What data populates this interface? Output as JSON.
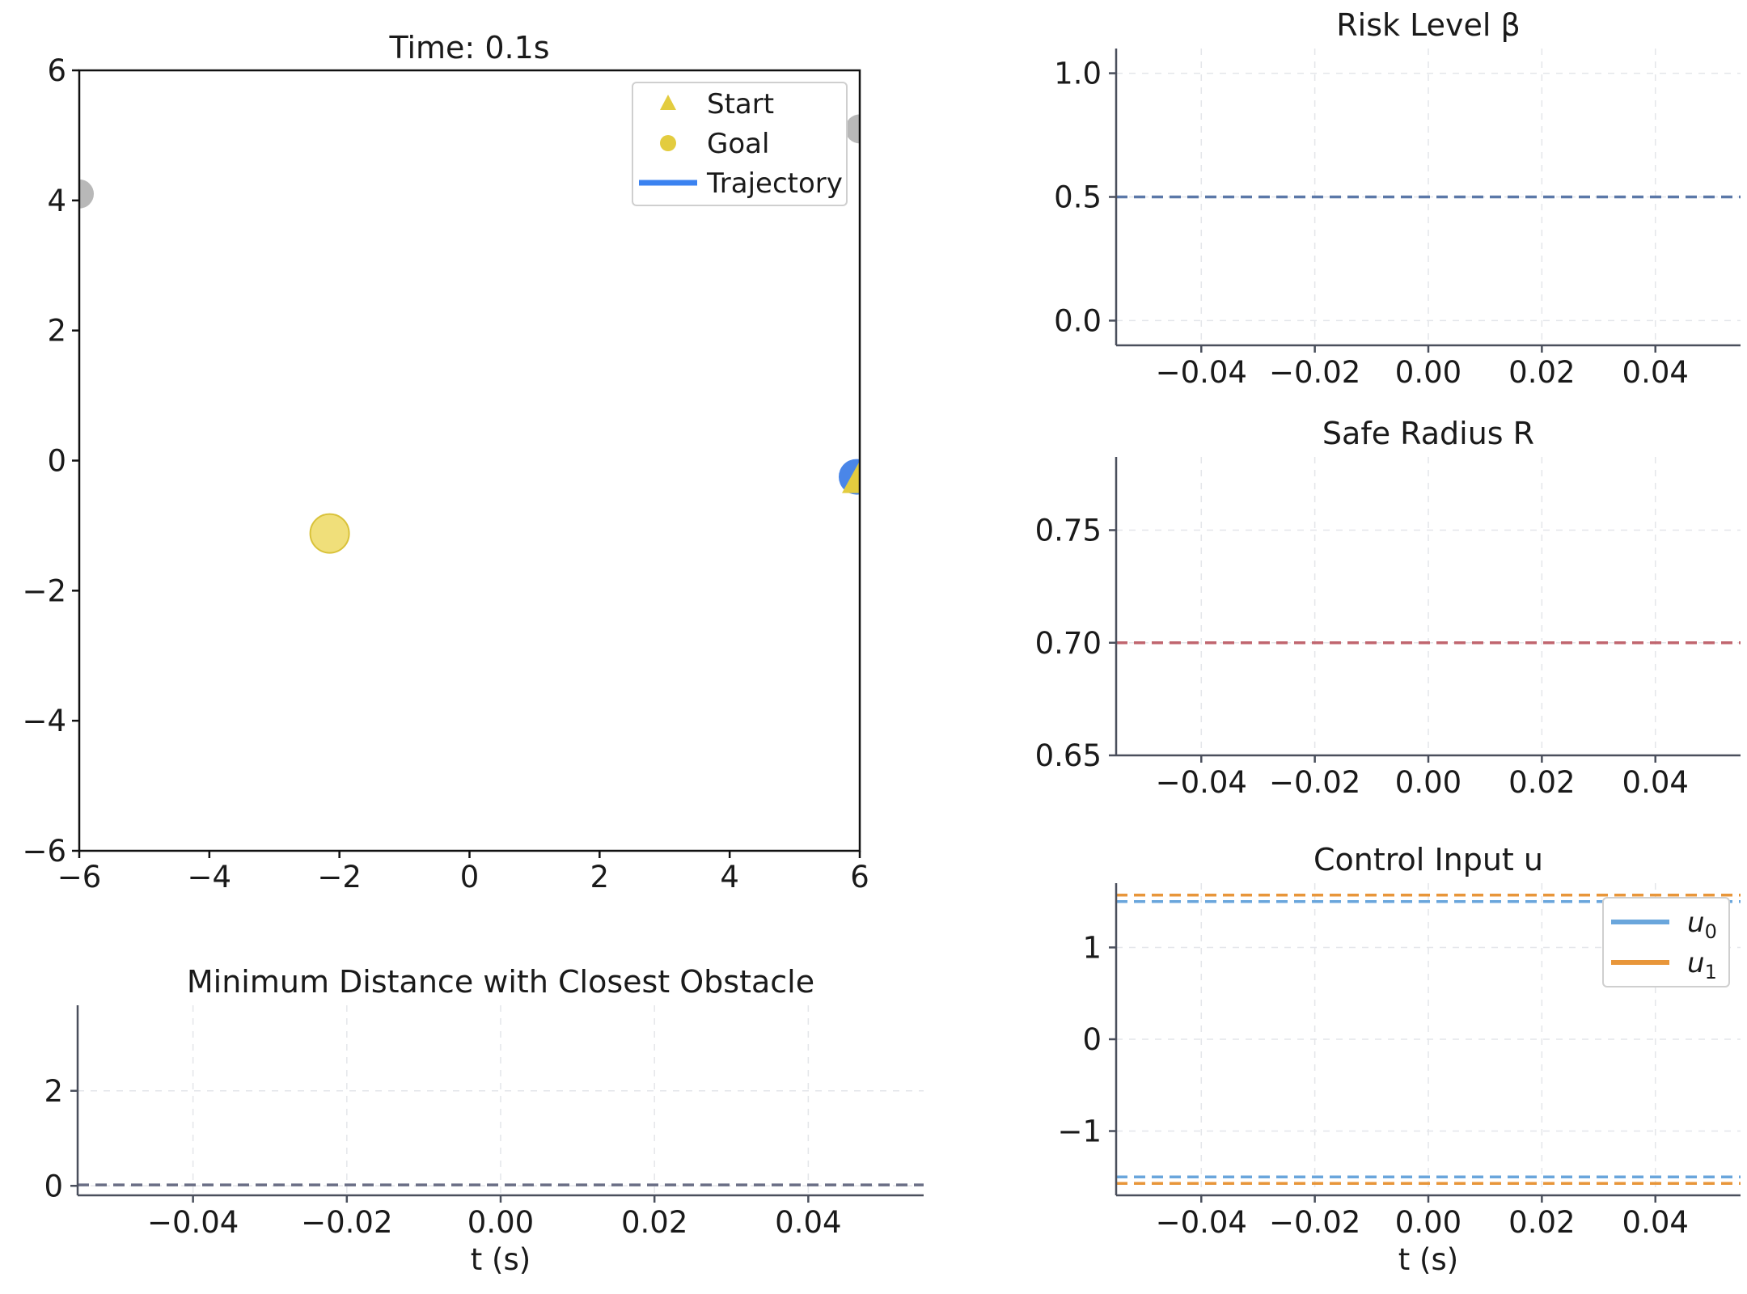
{
  "chart_data": [
    {
      "id": "map",
      "type": "scatter",
      "title": "Time: 0.1s",
      "xlim": [
        -6,
        6
      ],
      "ylim": [
        -6,
        6
      ],
      "xticks": [
        "−6",
        "−4",
        "−2",
        "0",
        "2",
        "4",
        "6"
      ],
      "yticks": [
        "−6",
        "−4",
        "−2",
        "0",
        "2",
        "4",
        "6"
      ],
      "xtick_values": [
        -6,
        -4,
        -2,
        0,
        2,
        4,
        6
      ],
      "ytick_values": [
        -6,
        -4,
        -2,
        0,
        2,
        4,
        6
      ],
      "legend": {
        "placement": "top-right",
        "entries": [
          {
            "label": "Start",
            "marker": "triangle",
            "color": "#e3cc3f"
          },
          {
            "label": "Goal",
            "marker": "circle",
            "color": "#e3cc3f"
          },
          {
            "label": "Trajectory",
            "marker": "line",
            "color": "#3b82f0"
          }
        ]
      },
      "points": [
        {
          "label": "Goal",
          "x": -2.15,
          "y": -1.12,
          "marker": "circle",
          "color": "#f0df7a"
        },
        {
          "label": "Robot",
          "x": 5.95,
          "y": -0.25,
          "marker": "circle",
          "color": "#4a86e8"
        },
        {
          "label": "Start",
          "x": 6.0,
          "y": -0.28,
          "marker": "triangle",
          "color": "#e3cc3f"
        },
        {
          "label": "Obstacle",
          "x": -6.0,
          "y": 4.1,
          "marker": "circle",
          "color": "#888888"
        },
        {
          "label": "Obstacle",
          "x": 6.0,
          "y": 5.1,
          "marker": "circle",
          "color": "#888888"
        }
      ]
    },
    {
      "id": "risk",
      "type": "line",
      "title": "Risk Level β",
      "xlim": [
        -0.055,
        0.055
      ],
      "ylim": [
        -0.1,
        1.1
      ],
      "xtick_values": [
        -0.04,
        -0.02,
        0.0,
        0.02,
        0.04
      ],
      "xticks": [
        "−0.04",
        "−0.02",
        "0.00",
        "0.02",
        "0.04"
      ],
      "ytick_values": [
        0.0,
        0.5,
        1.0
      ],
      "yticks": [
        "0.0",
        "0.5",
        "1.0"
      ],
      "grid": true,
      "series": [
        {
          "values": [
            0.5
          ],
          "style": "dashed",
          "color": "#5b78a8"
        }
      ]
    },
    {
      "id": "radius",
      "type": "line",
      "title": "Safe Radius R",
      "xlim": [
        -0.055,
        0.055
      ],
      "ylim": [
        0.65,
        0.7825
      ],
      "xtick_values": [
        -0.04,
        -0.02,
        0.0,
        0.02,
        0.04
      ],
      "xticks": [
        "−0.04",
        "−0.02",
        "0.00",
        "0.02",
        "0.04"
      ],
      "ytick_values": [
        0.65,
        0.7,
        0.75
      ],
      "yticks": [
        "0.65",
        "0.70",
        "0.75"
      ],
      "grid": true,
      "series": [
        {
          "values": [
            0.7
          ],
          "style": "dashed",
          "color": "#c0666f"
        }
      ]
    },
    {
      "id": "control",
      "type": "line",
      "title": "Control Input u",
      "xlabel": "t (s)",
      "xlim": [
        -0.055,
        0.055
      ],
      "ylim": [
        -1.7,
        1.7
      ],
      "xtick_values": [
        -0.04,
        -0.02,
        0.0,
        0.02,
        0.04
      ],
      "xticks": [
        "−0.04",
        "−0.02",
        "0.00",
        "0.02",
        "0.04"
      ],
      "ytick_values": [
        -1,
        0,
        1
      ],
      "yticks": [
        "−1",
        "0",
        "1"
      ],
      "grid": true,
      "legend": {
        "placement": "top-right",
        "entries": [
          {
            "label": "u",
            "sub": "0",
            "color": "#6aa6dc"
          },
          {
            "label": "u",
            "sub": "1",
            "color": "#e8963a"
          }
        ]
      },
      "series": [
        {
          "name": "u0 upper",
          "values": [
            1.5
          ],
          "style": "dashed",
          "color": "#6aa6dc"
        },
        {
          "name": "u1 upper",
          "values": [
            1.57
          ],
          "style": "dashed",
          "color": "#e8963a"
        },
        {
          "name": "u0 lower",
          "values": [
            -1.5
          ],
          "style": "dashed",
          "color": "#6aa6dc"
        },
        {
          "name": "u1 lower",
          "values": [
            -1.57
          ],
          "style": "dashed",
          "color": "#e8963a"
        }
      ]
    },
    {
      "id": "distance",
      "type": "line",
      "title": "Minimum Distance with Closest Obstacle",
      "xlabel": "t (s)",
      "xlim": [
        -0.055,
        0.055
      ],
      "ylim": [
        -0.2,
        3.8
      ],
      "xtick_values": [
        -0.04,
        -0.02,
        0.0,
        0.02,
        0.04
      ],
      "xticks": [
        "−0.04",
        "−0.02",
        "0.00",
        "0.02",
        "0.04"
      ],
      "ytick_values": [
        0,
        2
      ],
      "yticks": [
        "0",
        "2"
      ],
      "grid": true,
      "series": [
        {
          "values": [
            0.02
          ],
          "style": "dashed",
          "color": "#6b6f86"
        }
      ]
    }
  ]
}
